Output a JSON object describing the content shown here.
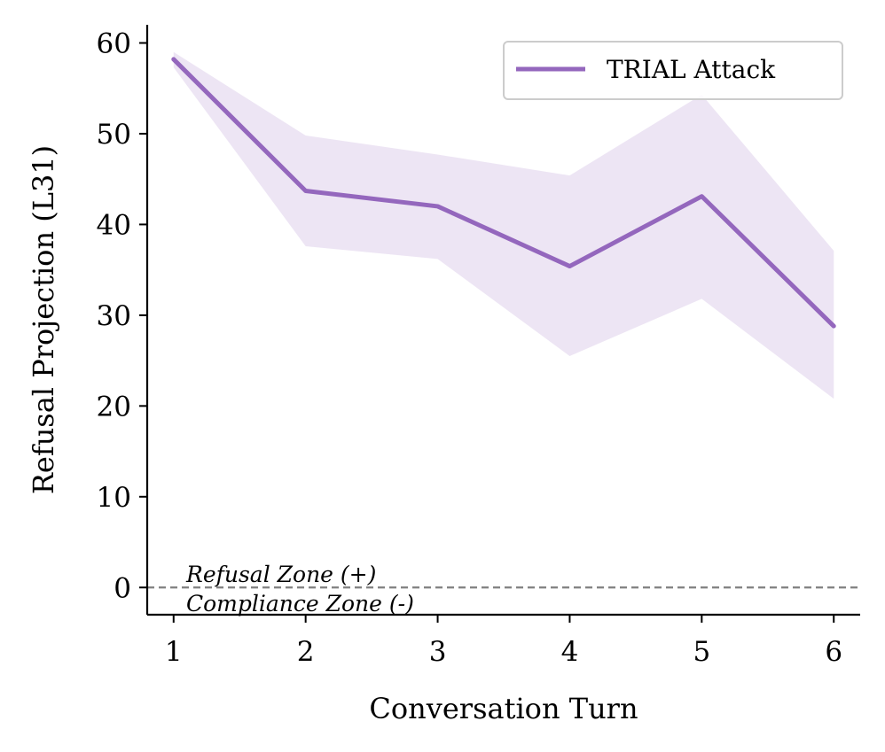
{
  "chart_data": {
    "type": "line",
    "xlabel": "Conversation Turn",
    "ylabel": "Refusal Projection (L31)",
    "x": [
      1,
      2,
      3,
      4,
      5,
      6
    ],
    "xlim": [
      0.8,
      6.2
    ],
    "ylim": [
      -3,
      62
    ],
    "xticks": [
      1,
      2,
      3,
      4,
      5,
      6
    ],
    "yticks": [
      0,
      10,
      20,
      30,
      40,
      50,
      60
    ],
    "grid": false,
    "legend_position": "top-right",
    "series": [
      {
        "name": "TRIAL Attack",
        "color": "#9467bd",
        "values": [
          58.2,
          43.7,
          42.0,
          35.4,
          43.1,
          28.8
        ],
        "band_upper": [
          59.0,
          49.8,
          47.7,
          45.4,
          54.3,
          37.1
        ],
        "band_lower": [
          57.3,
          37.6,
          36.2,
          25.5,
          31.8,
          20.8
        ]
      }
    ],
    "reference_line": {
      "y": 0,
      "style": "dashed",
      "color": "#808080"
    },
    "annotations": {
      "above": "Refusal Zone (+)",
      "below": "Compliance Zone (-)"
    }
  }
}
